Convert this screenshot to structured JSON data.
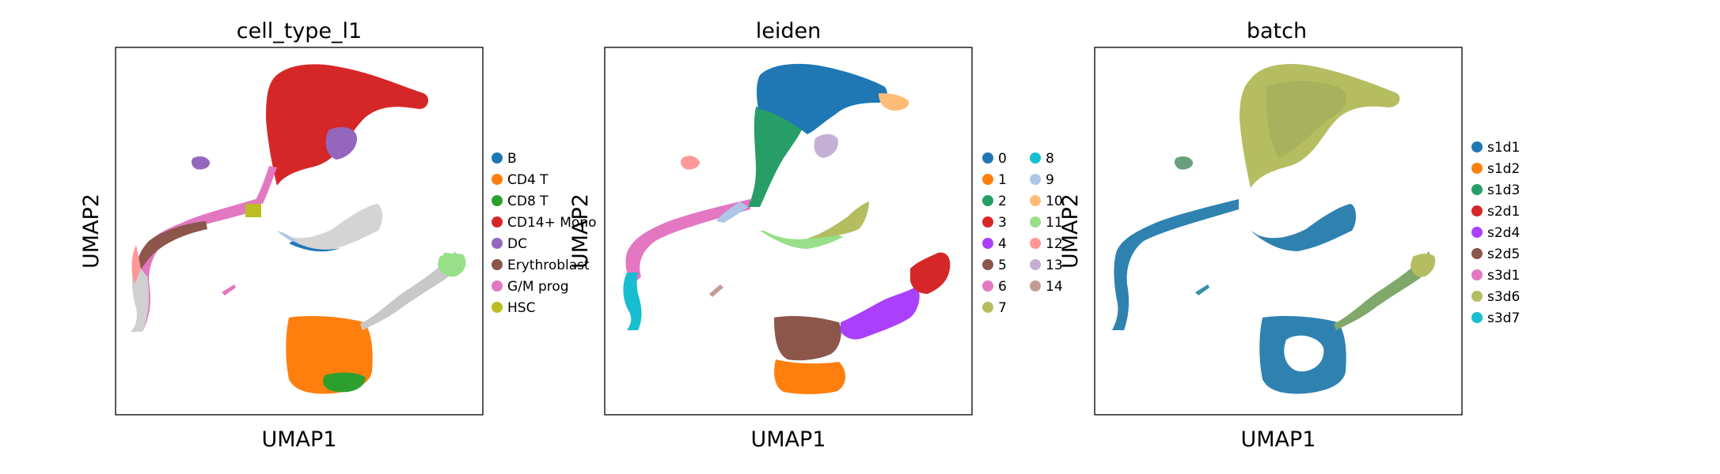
{
  "chart_data": [
    {
      "type": "scatter",
      "title": "cell_type_l1",
      "xlabel": "UMAP1",
      "ylabel": "UMAP2",
      "legend": [
        {
          "label": "B",
          "color": "#1f77b4"
        },
        {
          "label": "CD4 T",
          "color": "#ff7f0e"
        },
        {
          "label": "CD8 T",
          "color": "#2ca02c"
        },
        {
          "label": "CD14+ Mono",
          "color": "#d62728"
        },
        {
          "label": "DC",
          "color": "#9467bd"
        },
        {
          "label": "Erythroblast",
          "color": "#8c564b"
        },
        {
          "label": "G/M prog",
          "color": "#e377c2"
        },
        {
          "label": "HSC",
          "color": "#bcbd22"
        }
      ],
      "legend_columns": 1
    },
    {
      "type": "scatter",
      "title": "leiden",
      "xlabel": "UMAP1",
      "ylabel": "UMAP2",
      "legend": [
        {
          "label": "0",
          "color": "#1f77b4"
        },
        {
          "label": "1",
          "color": "#ff7f0e"
        },
        {
          "label": "2",
          "color": "#279e68"
        },
        {
          "label": "3",
          "color": "#d62728"
        },
        {
          "label": "4",
          "color": "#aa40fc"
        },
        {
          "label": "5",
          "color": "#8c564b"
        },
        {
          "label": "6",
          "color": "#e377c2"
        },
        {
          "label": "7",
          "color": "#b5bd61"
        },
        {
          "label": "8",
          "color": "#17becf"
        },
        {
          "label": "9",
          "color": "#aec7e8"
        },
        {
          "label": "10",
          "color": "#ffbb78"
        },
        {
          "label": "11",
          "color": "#98df8a"
        },
        {
          "label": "12",
          "color": "#ff9896"
        },
        {
          "label": "13",
          "color": "#c5b0d5"
        },
        {
          "label": "14",
          "color": "#c49c94"
        }
      ],
      "legend_columns": 2
    },
    {
      "type": "scatter",
      "title": "batch",
      "xlabel": "UMAP1",
      "ylabel": "UMAP2",
      "legend": [
        {
          "label": "s1d1",
          "color": "#1f77b4"
        },
        {
          "label": "s1d2",
          "color": "#ff7f0e"
        },
        {
          "label": "s1d3",
          "color": "#279e68"
        },
        {
          "label": "s2d1",
          "color": "#d62728"
        },
        {
          "label": "s2d4",
          "color": "#aa40fc"
        },
        {
          "label": "s2d5",
          "color": "#8c564b"
        },
        {
          "label": "s3d1",
          "color": "#e377c2"
        },
        {
          "label": "s3d6",
          "color": "#b5bd61"
        },
        {
          "label": "s3d7",
          "color": "#17becf"
        }
      ],
      "legend_columns": 1
    }
  ]
}
